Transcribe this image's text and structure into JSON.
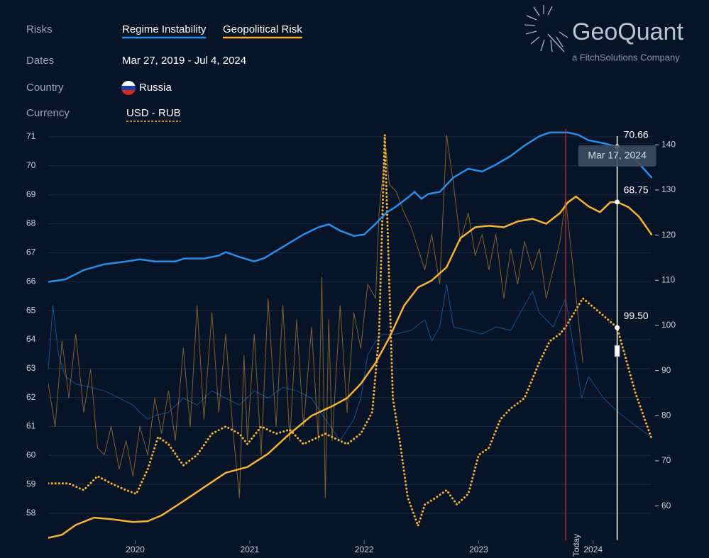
{
  "header": {
    "risks_label": "Risks",
    "dates_label": "Dates",
    "dates": "Mar 27, 2019 - Jul 4, 2024",
    "country_label": "Country",
    "country": "Russia",
    "currency_label": "Currency"
  },
  "logo": {
    "name": "GeoQuant",
    "tagline": "a FitchSolutions Company"
  },
  "chart_data": {
    "type": "line",
    "xlim": [
      2019.24,
      2024.51
    ],
    "xticks": [
      2020,
      2021,
      2022,
      2023,
      2024
    ],
    "ylim": [
      57.07,
      71.27
    ],
    "yticks": [
      58,
      59,
      60,
      61,
      62,
      63,
      64,
      65,
      66,
      67,
      68,
      69,
      70,
      71
    ],
    "y2lim": [
      52.4,
      143.5
    ],
    "y2ticks": [
      60,
      70,
      80,
      90,
      100,
      110,
      120,
      130,
      140
    ],
    "grid": true,
    "series": [
      {
        "name": "Regime Instability",
        "color": "#2a8ee8",
        "style": "solid",
        "x": [
          2019.24,
          2019.39,
          2019.55,
          2019.73,
          2019.92,
          2020.04,
          2020.17,
          2020.35,
          2020.43,
          2020.6,
          2020.73,
          2020.79,
          2020.91,
          2021.04,
          2021.13,
          2021.29,
          2021.47,
          2021.6,
          2021.69,
          2021.79,
          2021.91,
          2022.0,
          2022.1,
          2022.19,
          2022.28,
          2022.38,
          2022.44,
          2022.5,
          2022.56,
          2022.66,
          2022.78,
          2022.91,
          2023.03,
          2023.15,
          2023.28,
          2023.4,
          2023.53,
          2023.62,
          2023.78,
          2023.87,
          2023.96,
          2024.09,
          2024.21,
          2024.34,
          2024.51
        ],
        "values": [
          65.99,
          66.08,
          66.4,
          66.6,
          66.7,
          66.77,
          66.7,
          66.7,
          66.8,
          66.8,
          66.9,
          67.02,
          66.85,
          66.7,
          66.82,
          67.2,
          67.63,
          67.88,
          67.98,
          67.76,
          67.58,
          67.63,
          68.0,
          68.37,
          68.6,
          68.9,
          69.1,
          68.86,
          69.03,
          69.1,
          69.6,
          69.9,
          69.8,
          70.04,
          70.34,
          70.7,
          71.02,
          71.15,
          71.15,
          71.07,
          70.88,
          70.78,
          70.66,
          70.34,
          69.6
        ]
      },
      {
        "name": "Geopolitical Risk",
        "color": "#f5b335",
        "style": "solid",
        "x": [
          2019.24,
          2019.36,
          2019.48,
          2019.64,
          2019.79,
          2019.98,
          2020.11,
          2020.23,
          2020.42,
          2020.6,
          2020.79,
          2020.98,
          2021.16,
          2021.35,
          2021.54,
          2021.72,
          2021.85,
          2021.97,
          2022.1,
          2022.22,
          2022.35,
          2022.47,
          2022.59,
          2022.72,
          2022.84,
          2022.97,
          2023.09,
          2023.22,
          2023.34,
          2023.47,
          2023.59,
          2023.71,
          2023.78,
          2023.85,
          2023.96,
          2024.06,
          2024.15,
          2024.21,
          2024.31,
          2024.4,
          2024.51
        ],
        "values": [
          57.15,
          57.26,
          57.6,
          57.85,
          57.8,
          57.7,
          57.73,
          57.93,
          58.42,
          58.9,
          59.4,
          59.6,
          60.06,
          60.75,
          61.37,
          61.7,
          61.98,
          62.47,
          63.2,
          64.07,
          65.18,
          65.8,
          66.04,
          66.5,
          67.5,
          67.88,
          67.93,
          67.88,
          68.08,
          68.17,
          68.0,
          68.37,
          68.74,
          68.94,
          68.6,
          68.4,
          68.74,
          68.75,
          68.57,
          68.25,
          67.63
        ]
      },
      {
        "name": "USD - RUB",
        "color": "#f5b335",
        "style": "dotted",
        "axis": "y2",
        "x": [
          2019.24,
          2019.42,
          2019.55,
          2019.67,
          2019.79,
          2019.92,
          2020.01,
          2020.11,
          2020.2,
          2020.29,
          2020.42,
          2020.54,
          2020.67,
          2020.79,
          2020.91,
          2020.98,
          2021.1,
          2021.23,
          2021.35,
          2021.47,
          2021.66,
          2021.85,
          2021.97,
          2022.07,
          2022.13,
          2022.16,
          2022.18,
          2022.21,
          2022.25,
          2022.31,
          2022.38,
          2022.47,
          2022.53,
          2022.63,
          2022.72,
          2022.81,
          2022.91,
          2023.0,
          2023.09,
          2023.19,
          2023.28,
          2023.4,
          2023.53,
          2023.62,
          2023.71,
          2023.76,
          2023.91,
          2024.06,
          2024.21,
          2024.37,
          2024.51
        ],
        "values": [
          65,
          65,
          63.5,
          66.6,
          65,
          63.5,
          62.7,
          68.2,
          75.3,
          73.7,
          69,
          71.3,
          76,
          77.6,
          76,
          73.7,
          77.6,
          76,
          76.9,
          73.7,
          76,
          73.7,
          76,
          80.8,
          98,
          124.9,
          142.2,
          117,
          83.9,
          74.5,
          61.9,
          55.6,
          60.3,
          61.9,
          63.5,
          60.3,
          62.7,
          71.3,
          72.9,
          79.2,
          81.6,
          83.9,
          91.8,
          96.5,
          98.1,
          99.7,
          106,
          102.8,
          99.5,
          85,
          75
        ]
      },
      {
        "name": "Regime Instability",
        "color": "#2a8ee8",
        "style": "faded",
        "x": [
          2019.24,
          2019.28,
          2019.33,
          2019.39,
          2019.48,
          2019.61,
          2019.73,
          2019.86,
          2019.98,
          2020.04,
          2020.11,
          2020.17,
          2020.29,
          2020.42,
          2020.54,
          2020.67,
          2020.79,
          2020.91,
          2021.04,
          2021.16,
          2021.29,
          2021.41,
          2021.54,
          2021.66,
          2021.79,
          2021.91,
          2021.97,
          2022.03,
          2022.1,
          2022.16,
          2022.28,
          2022.41,
          2022.53,
          2022.59,
          2022.66,
          2022.72,
          2022.78,
          2022.91,
          2023.03,
          2023.15,
          2023.28,
          2023.4,
          2023.47,
          2023.53,
          2023.65,
          2023.76,
          2023.84,
          2023.9,
          2023.96,
          2024.09,
          2024.22,
          2024.34,
          2024.51
        ],
        "values": [
          62.97,
          65.18,
          63.46,
          62.72,
          62.47,
          62.35,
          62.23,
          61.98,
          61.74,
          61.49,
          61.25,
          61.37,
          61.49,
          61.98,
          61.74,
          62.23,
          61.98,
          61.74,
          62.23,
          61.98,
          62.35,
          62.23,
          61.98,
          61.25,
          60.51,
          61.25,
          61.98,
          63.46,
          63.95,
          64.19,
          64.19,
          64.32,
          64.69,
          63.95,
          64.44,
          65.91,
          64.44,
          64.32,
          64.19,
          64.44,
          64.32,
          65.18,
          65.67,
          64.93,
          64.44,
          65.42,
          63.46,
          61.98,
          62.72,
          61.98,
          61.49,
          61.12,
          60.63
        ]
      },
      {
        "name": "Geopolitical Risk",
        "color": "#f5b335",
        "style": "faded",
        "x": [
          2019.24,
          2019.3,
          2019.36,
          2019.42,
          2019.48,
          2019.55,
          2019.61,
          2019.67,
          2019.73,
          2019.79,
          2019.86,
          2019.92,
          2019.98,
          2020.04,
          2020.11,
          2020.17,
          2020.23,
          2020.29,
          2020.35,
          2020.42,
          2020.48,
          2020.54,
          2020.6,
          2020.67,
          2020.73,
          2020.79,
          2020.85,
          2020.91,
          2020.95,
          2020.98,
          2021.04,
          2021.1,
          2021.16,
          2021.23,
          2021.29,
          2021.35,
          2021.41,
          2021.47,
          2021.54,
          2021.6,
          2021.63,
          2021.66,
          2021.69,
          2021.72,
          2021.79,
          2021.85,
          2021.91,
          2021.97,
          2022.03,
          2022.1,
          2022.13,
          2022.16,
          2022.19,
          2022.22,
          2022.28,
          2022.35,
          2022.41,
          2022.47,
          2022.53,
          2022.59,
          2022.66,
          2022.72,
          2022.78,
          2022.84,
          2022.91,
          2022.97,
          2023.03,
          2023.09,
          2023.15,
          2023.22,
          2023.28,
          2023.34,
          2023.4,
          2023.47,
          2023.53,
          2023.59,
          2023.65,
          2023.71,
          2023.76,
          2023.84,
          2023.91
        ],
        "values": [
          62.47,
          61.0,
          63.95,
          61.98,
          64.19,
          61.49,
          62.97,
          60.26,
          60.02,
          61.0,
          59.53,
          60.51,
          59.28,
          61.0,
          60.02,
          61.98,
          60.75,
          62.23,
          60.51,
          63.7,
          61.0,
          65.18,
          61.25,
          64.93,
          61.49,
          64.19,
          61.0,
          58.54,
          63.46,
          60.51,
          64.19,
          60.02,
          65.42,
          61.0,
          65.18,
          60.51,
          64.69,
          61.0,
          64.44,
          60.51,
          66.16,
          58.54,
          64.69,
          60.51,
          65.18,
          61.49,
          64.93,
          63.7,
          65.91,
          65.42,
          68.37,
          69.6,
          70.58,
          69.35,
          69.11,
          68.37,
          67.88,
          67.14,
          66.41,
          67.63,
          65.91,
          71.07,
          69.35,
          67.39,
          68.37,
          66.9,
          67.63,
          66.41,
          67.63,
          65.42,
          67.14,
          65.91,
          67.39,
          66.41,
          67.14,
          65.42,
          66.41,
          67.39,
          68.86,
          65.91,
          63.21
        ]
      }
    ],
    "annotations": {
      "today": {
        "x": 2023.76,
        "label": "Today"
      },
      "hover": {
        "x": 2024.21,
        "label": "Mar 17, 2024",
        "values": [
          70.66,
          68.75,
          99.5
        ],
        "value_labels": [
          "70.66",
          "68.75",
          "99.50"
        ]
      }
    }
  }
}
